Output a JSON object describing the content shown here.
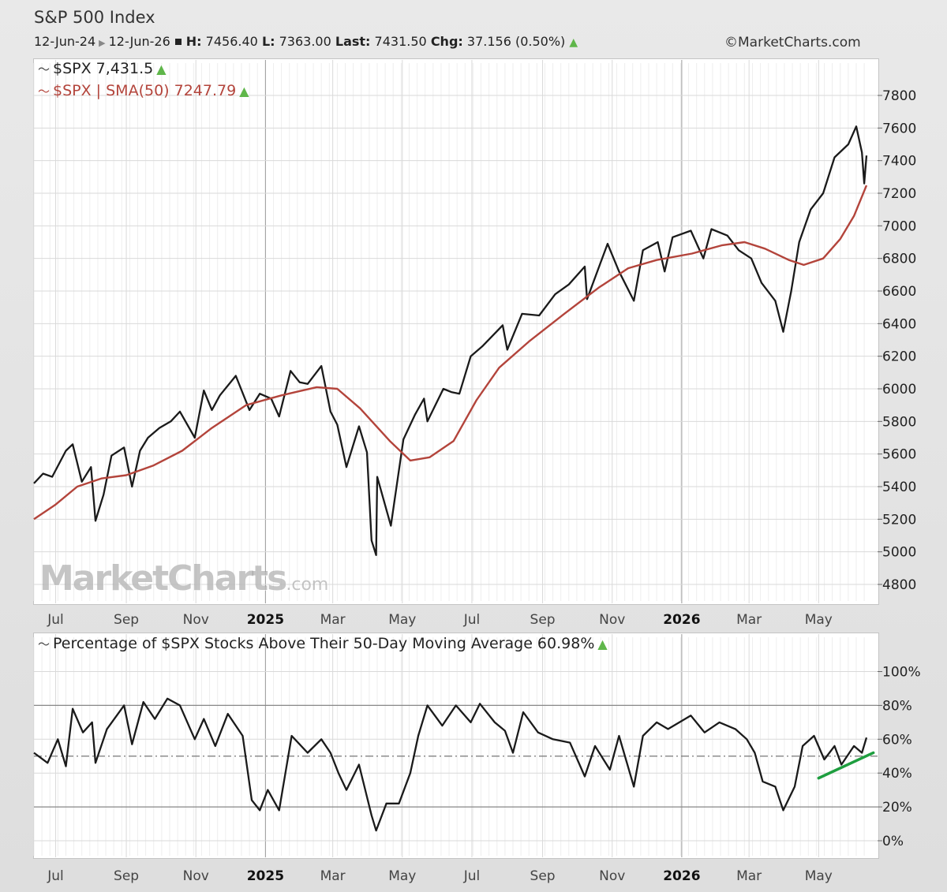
{
  "header": {
    "title": "S&P 500 Index",
    "date_from": "12-Jun-24",
    "date_to": "12-Jun-26",
    "high_label": "H:",
    "high_value": "7456.40",
    "low_label": "L:",
    "low_value": "7363.00",
    "last_label": "Last:",
    "last_value": "7431.50",
    "chg_label": "Chg:",
    "chg_value": "37.156 (0.50%)",
    "copyright": "©MarketCharts.com"
  },
  "watermark": {
    "brand": "MarketCharts",
    "suffix": ".com"
  },
  "colors": {
    "price": "#1a1a1a",
    "sma": "#b3443b",
    "up_arrow": "#5fb64a",
    "trend_line": "#1e9e3f",
    "grid": "#d9d9d9",
    "divider": "#9a9a9a"
  },
  "icons": {
    "legend_glyph": "line-chart-icon",
    "up_arrow": "up-triangle-icon"
  },
  "chart_data": [
    {
      "type": "line",
      "legend": [
        {
          "text": "$SPX 7,431.5",
          "color": "#1a1a1a"
        },
        {
          "text": "$SPX | SMA(50) 7247.79",
          "color": "#b3443b"
        }
      ],
      "xlabels": [
        "Jul",
        "Sep",
        "Nov",
        "2025",
        "Mar",
        "May",
        "Jul",
        "Sep",
        "Nov",
        "2026",
        "Mar",
        "May"
      ],
      "yticks": [
        "4800",
        "5000",
        "5200",
        "5400",
        "5600",
        "5800",
        "6000",
        "6200",
        "6400",
        "6600",
        "6800",
        "7000",
        "7200",
        "7400",
        "7600",
        "7800"
      ],
      "ylim": [
        4700,
        7900
      ],
      "series": [
        {
          "name": "$SPX",
          "points": [
            [
              "2024-06-12",
              5420
            ],
            [
              "2024-06-20",
              5480
            ],
            [
              "2024-06-28",
              5460
            ],
            [
              "2024-07-10",
              5620
            ],
            [
              "2024-07-16",
              5660
            ],
            [
              "2024-07-24",
              5430
            ],
            [
              "2024-08-01",
              5520
            ],
            [
              "2024-08-05",
              5190
            ],
            [
              "2024-08-12",
              5350
            ],
            [
              "2024-08-19",
              5590
            ],
            [
              "2024-08-30",
              5640
            ],
            [
              "2024-09-06",
              5400
            ],
            [
              "2024-09-13",
              5620
            ],
            [
              "2024-09-20",
              5700
            ],
            [
              "2024-09-30",
              5760
            ],
            [
              "2024-10-10",
              5800
            ],
            [
              "2024-10-18",
              5860
            ],
            [
              "2024-10-31",
              5700
            ],
            [
              "2024-11-08",
              5990
            ],
            [
              "2024-11-15",
              5870
            ],
            [
              "2024-11-22",
              5960
            ],
            [
              "2024-12-06",
              6080
            ],
            [
              "2024-12-18",
              5870
            ],
            [
              "2024-12-27",
              5970
            ],
            [
              "2025-01-06",
              5940
            ],
            [
              "2025-01-13",
              5830
            ],
            [
              "2025-01-23",
              6110
            ],
            [
              "2025-01-31",
              6040
            ],
            [
              "2025-02-07",
              6030
            ],
            [
              "2025-02-19",
              6140
            ],
            [
              "2025-02-27",
              5860
            ],
            [
              "2025-03-05",
              5780
            ],
            [
              "2025-03-13",
              5520
            ],
            [
              "2025-03-24",
              5770
            ],
            [
              "2025-03-31",
              5610
            ],
            [
              "2025-04-04",
              5070
            ],
            [
              "2025-04-08",
              4980
            ],
            [
              "2025-04-09",
              5460
            ],
            [
              "2025-04-21",
              5160
            ],
            [
              "2025-05-02",
              5690
            ],
            [
              "2025-05-12",
              5840
            ],
            [
              "2025-05-20",
              5940
            ],
            [
              "2025-05-23",
              5800
            ],
            [
              "2025-06-06",
              6000
            ],
            [
              "2025-06-13",
              5980
            ],
            [
              "2025-06-20",
              5970
            ],
            [
              "2025-06-30",
              6200
            ],
            [
              "2025-07-10",
              6260
            ],
            [
              "2025-07-28",
              6390
            ],
            [
              "2025-08-01",
              6240
            ],
            [
              "2025-08-14",
              6460
            ],
            [
              "2025-08-29",
              6450
            ],
            [
              "2025-09-12",
              6580
            ],
            [
              "2025-09-24",
              6640
            ],
            [
              "2025-10-08",
              6750
            ],
            [
              "2025-10-10",
              6550
            ],
            [
              "2025-10-20",
              6740
            ],
            [
              "2025-10-28",
              6890
            ],
            [
              "2025-11-07",
              6720
            ],
            [
              "2025-11-20",
              6540
            ],
            [
              "2025-11-28",
              6850
            ],
            [
              "2025-12-11",
              6900
            ],
            [
              "2025-12-17",
              6720
            ],
            [
              "2025-12-24",
              6930
            ],
            [
              "2026-01-09",
              6970
            ],
            [
              "2026-01-20",
              6800
            ],
            [
              "2026-01-27",
              6980
            ],
            [
              "2026-02-10",
              6940
            ],
            [
              "2026-02-20",
              6850
            ],
            [
              "2026-03-03",
              6800
            ],
            [
              "2026-03-12",
              6650
            ],
            [
              "2026-03-24",
              6540
            ],
            [
              "2026-03-31",
              6350
            ],
            [
              "2026-04-07",
              6600
            ],
            [
              "2026-04-14",
              6900
            ],
            [
              "2026-04-24",
              7100
            ],
            [
              "2026-05-05",
              7200
            ],
            [
              "2026-05-15",
              7420
            ],
            [
              "2026-05-27",
              7500
            ],
            [
              "2026-06-03",
              7610
            ],
            [
              "2026-06-08",
              7450
            ],
            [
              "2026-06-10",
              7260
            ],
            [
              "2026-06-12",
              7431.5
            ]
          ]
        },
        {
          "name": "SMA(50)",
          "points": [
            [
              "2024-06-12",
              5200
            ],
            [
              "2024-07-01",
              5290
            ],
            [
              "2024-07-20",
              5400
            ],
            [
              "2024-08-10",
              5450
            ],
            [
              "2024-09-01",
              5470
            ],
            [
              "2024-09-25",
              5530
            ],
            [
              "2024-10-20",
              5620
            ],
            [
              "2024-11-15",
              5760
            ],
            [
              "2024-12-15",
              5900
            ],
            [
              "2025-01-15",
              5960
            ],
            [
              "2025-02-15",
              6010
            ],
            [
              "2025-03-05",
              6000
            ],
            [
              "2025-03-25",
              5880
            ],
            [
              "2025-04-20",
              5680
            ],
            [
              "2025-05-08",
              5560
            ],
            [
              "2025-05-25",
              5580
            ],
            [
              "2025-06-15",
              5680
            ],
            [
              "2025-07-05",
              5930
            ],
            [
              "2025-07-25",
              6130
            ],
            [
              "2025-08-20",
              6290
            ],
            [
              "2025-09-20",
              6460
            ],
            [
              "2025-10-20",
              6620
            ],
            [
              "2025-11-15",
              6740
            ],
            [
              "2025-12-10",
              6790
            ],
            [
              "2026-01-10",
              6830
            ],
            [
              "2026-02-05",
              6880
            ],
            [
              "2026-02-25",
              6900
            ],
            [
              "2026-03-15",
              6860
            ],
            [
              "2026-04-05",
              6790
            ],
            [
              "2026-04-18",
              6760
            ],
            [
              "2026-05-05",
              6800
            ],
            [
              "2026-05-20",
              6920
            ],
            [
              "2026-06-01",
              7060
            ],
            [
              "2026-06-12",
              7247.79
            ]
          ]
        }
      ]
    },
    {
      "type": "line",
      "legend": [
        {
          "text": "Percentage of $SPX Stocks Above Their 50-Day Moving Average 60.98%",
          "color": "#1a1a1a"
        }
      ],
      "xlabels": [
        "Jul",
        "Sep",
        "Nov",
        "2025",
        "Mar",
        "May",
        "Jul",
        "Sep",
        "Nov",
        "2026",
        "Mar",
        "May"
      ],
      "yticks": [
        "0%",
        "20%",
        "40%",
        "60%",
        "80%",
        "100%"
      ],
      "ylim": [
        -8,
        112
      ],
      "reference_lines": [
        20,
        50,
        80
      ],
      "series": [
        {
          "name": "% above 50-day MA",
          "points": [
            [
              "2024-06-12",
              52
            ],
            [
              "2024-06-24",
              46
            ],
            [
              "2024-07-03",
              60
            ],
            [
              "2024-07-10",
              44
            ],
            [
              "2024-07-16",
              78
            ],
            [
              "2024-07-25",
              64
            ],
            [
              "2024-08-02",
              70
            ],
            [
              "2024-08-05",
              46
            ],
            [
              "2024-08-15",
              66
            ],
            [
              "2024-08-30",
              80
            ],
            [
              "2024-09-06",
              57
            ],
            [
              "2024-09-16",
              82
            ],
            [
              "2024-09-26",
              72
            ],
            [
              "2024-10-07",
              84
            ],
            [
              "2024-10-18",
              80
            ],
            [
              "2024-10-31",
              60
            ],
            [
              "2024-11-08",
              72
            ],
            [
              "2024-11-18",
              56
            ],
            [
              "2024-11-29",
              75
            ],
            [
              "2024-12-12",
              62
            ],
            [
              "2024-12-20",
              24
            ],
            [
              "2024-12-27",
              18
            ],
            [
              "2025-01-03",
              30
            ],
            [
              "2025-01-13",
              18
            ],
            [
              "2025-01-24",
              62
            ],
            [
              "2025-02-07",
              52
            ],
            [
              "2025-02-19",
              60
            ],
            [
              "2025-02-27",
              52
            ],
            [
              "2025-03-06",
              40
            ],
            [
              "2025-03-13",
              30
            ],
            [
              "2025-03-24",
              45
            ],
            [
              "2025-04-04",
              15
            ],
            [
              "2025-04-08",
              6
            ],
            [
              "2025-04-17",
              22
            ],
            [
              "2025-04-28",
              22
            ],
            [
              "2025-05-08",
              40
            ],
            [
              "2025-05-15",
              62
            ],
            [
              "2025-05-23",
              80
            ],
            [
              "2025-06-05",
              68
            ],
            [
              "2025-06-17",
              80
            ],
            [
              "2025-06-30",
              70
            ],
            [
              "2025-07-08",
              81
            ],
            [
              "2025-07-21",
              70
            ],
            [
              "2025-07-30",
              65
            ],
            [
              "2025-08-06",
              52
            ],
            [
              "2025-08-15",
              76
            ],
            [
              "2025-08-28",
              64
            ],
            [
              "2025-09-10",
              60
            ],
            [
              "2025-09-25",
              58
            ],
            [
              "2025-10-08",
              38
            ],
            [
              "2025-10-17",
              56
            ],
            [
              "2025-10-30",
              42
            ],
            [
              "2025-11-07",
              62
            ],
            [
              "2025-11-20",
              32
            ],
            [
              "2025-11-28",
              62
            ],
            [
              "2025-12-10",
              70
            ],
            [
              "2025-12-20",
              66
            ],
            [
              "2026-01-09",
              74
            ],
            [
              "2026-01-21",
              64
            ],
            [
              "2026-02-03",
              70
            ],
            [
              "2026-02-17",
              66
            ],
            [
              "2026-02-27",
              60
            ],
            [
              "2026-03-06",
              52
            ],
            [
              "2026-03-13",
              35
            ],
            [
              "2026-03-24",
              32
            ],
            [
              "2026-03-31",
              18
            ],
            [
              "2026-04-10",
              32
            ],
            [
              "2026-04-17",
              56
            ],
            [
              "2026-04-27",
              62
            ],
            [
              "2026-05-06",
              48
            ],
            [
              "2026-05-15",
              56
            ],
            [
              "2026-05-21",
              45
            ],
            [
              "2026-06-01",
              56
            ],
            [
              "2026-06-08",
              52
            ],
            [
              "2026-06-12",
              60.98
            ]
          ]
        }
      ],
      "annotation": {
        "type": "trendline",
        "from": [
          "2026-05-01",
          37
        ],
        "to": [
          "2026-06-18",
          52
        ]
      }
    }
  ]
}
